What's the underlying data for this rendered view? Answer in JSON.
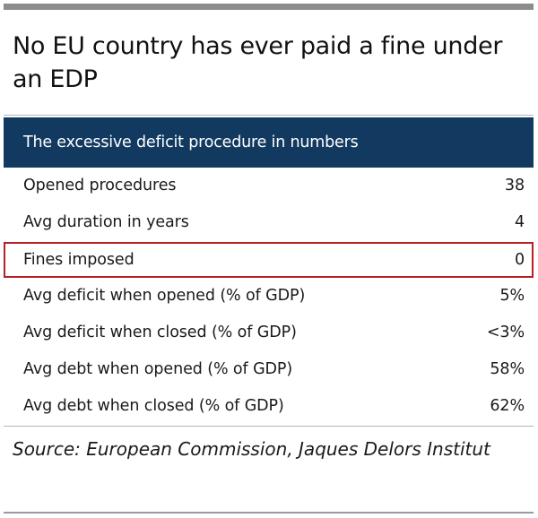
{
  "title": "No EU country has ever paid a fine under an EDP",
  "table": {
    "header": "The excessive deficit procedure in numbers",
    "rows": [
      {
        "label": "Opened procedures",
        "value": "38"
      },
      {
        "label": "Avg duration in years",
        "value": "4"
      },
      {
        "label": "Fines imposed",
        "value": "0"
      },
      {
        "label": "Avg deficit when opened (% of GDP)",
        "value": "5%"
      },
      {
        "label": "Avg deficit when closed (% of GDP)",
        "value": "<3%"
      },
      {
        "label": "Avg debt when opened (% of GDP)",
        "value": "58%"
      },
      {
        "label": "Avg debt when closed (% of GDP)",
        "value": "62%"
      }
    ],
    "highlight_color": "#b52025",
    "header_color": "#123a60"
  },
  "source": "Source: European Commission, Jaques Delors Institut"
}
